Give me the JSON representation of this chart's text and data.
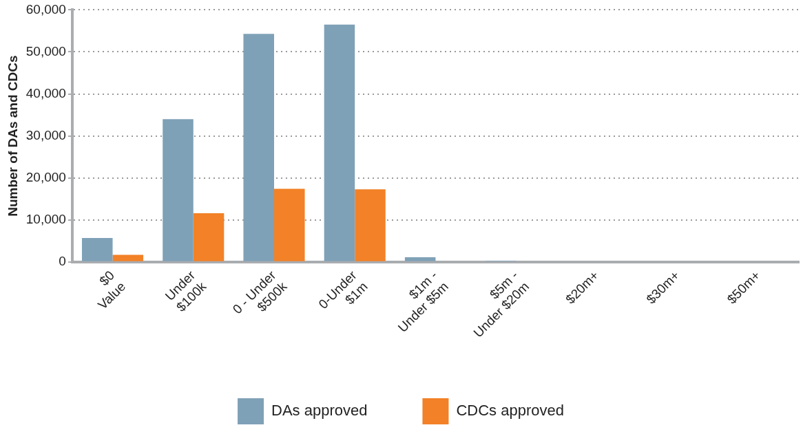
{
  "chart_data": {
    "type": "bar",
    "categories": [
      "$0\nValue",
      "Under\n$100k",
      "0 - Under\n$500k",
      "0-Under\n$1m",
      "$1m -\nUnder $5m",
      "$5m -\nUnder $20m",
      "$20m+",
      "$30m+",
      "$50m+"
    ],
    "series": [
      {
        "name": "DAs approved",
        "color": "#7fa1b7",
        "values": [
          5700,
          34000,
          54300,
          56500,
          1100,
          300,
          0,
          0,
          0
        ]
      },
      {
        "name": "CDCs approved",
        "color": "#f28127",
        "values": [
          1700,
          11600,
          17400,
          17300,
          0,
          0,
          0,
          0,
          0
        ]
      }
    ],
    "ylabel": "Number of DAs and CDCs",
    "ylim": [
      0,
      60000
    ],
    "yticks": [
      0,
      {
        "value": 10000,
        "label": "10,000"
      },
      {
        "value": 20000,
        "label": "20,000"
      },
      {
        "value": 30000,
        "label": "30,000"
      },
      {
        "value": 40000,
        "label": "40,000"
      },
      {
        "value": 50000,
        "label": "50,000"
      },
      {
        "value": 60000,
        "label": "60,000"
      }
    ],
    "grid": "y",
    "legend": "bottom"
  }
}
